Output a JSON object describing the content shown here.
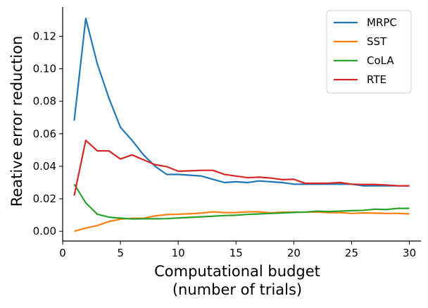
{
  "chart_data": {
    "type": "line",
    "title": "",
    "xlabel_line1": "Computational budget",
    "xlabel_line2": "(number of trials)",
    "ylabel": "Reative error reduction",
    "xlim": [
      0,
      31
    ],
    "ylim": [
      -0.006,
      0.138
    ],
    "xticks": [
      0,
      5,
      10,
      15,
      20,
      25,
      30
    ],
    "yticks": [
      0.0,
      0.02,
      0.04,
      0.06,
      0.08,
      0.1,
      0.12
    ],
    "ytick_labels": [
      "0.00",
      "0.02",
      "0.04",
      "0.06",
      "0.08",
      "0.10",
      "0.12"
    ],
    "legend_position": "top-right",
    "grid": false,
    "x": [
      1,
      2,
      3,
      4,
      5,
      6,
      7,
      8,
      9,
      10,
      11,
      12,
      13,
      14,
      15,
      16,
      17,
      18,
      19,
      20,
      21,
      22,
      23,
      24,
      25,
      26,
      27,
      28,
      29,
      30
    ],
    "series": [
      {
        "name": "MRPC",
        "color": "#1f77b4",
        "values": [
          0.068,
          0.131,
          0.103,
          0.082,
          0.064,
          0.056,
          0.047,
          0.04,
          0.035,
          0.035,
          0.0345,
          0.034,
          0.032,
          0.03,
          0.0305,
          0.03,
          0.031,
          0.0305,
          0.03,
          0.029,
          0.029,
          0.029,
          0.029,
          0.029,
          0.029,
          0.028,
          0.028,
          0.028,
          0.028,
          0.028
        ]
      },
      {
        "name": "SST",
        "color": "#ff7f0e",
        "values": [
          0.0,
          0.002,
          0.0035,
          0.006,
          0.0075,
          0.008,
          0.008,
          0.0095,
          0.0103,
          0.0105,
          0.0108,
          0.0112,
          0.012,
          0.0115,
          0.0115,
          0.012,
          0.012,
          0.0113,
          0.0118,
          0.0118,
          0.0118,
          0.0118,
          0.0115,
          0.0115,
          0.011,
          0.0113,
          0.0112,
          0.011,
          0.011,
          0.0107
        ]
      },
      {
        "name": "CoLA",
        "color": "#2ca02c",
        "values": [
          0.029,
          0.0175,
          0.0105,
          0.0087,
          0.0081,
          0.0076,
          0.0077,
          0.0077,
          0.0078,
          0.0082,
          0.0086,
          0.0089,
          0.0093,
          0.0097,
          0.0099,
          0.0104,
          0.0107,
          0.011,
          0.0113,
          0.0116,
          0.0118,
          0.0124,
          0.0121,
          0.0124,
          0.0127,
          0.0129,
          0.0136,
          0.0134,
          0.0141,
          0.0141
        ]
      },
      {
        "name": "RTE",
        "color": "#d62728",
        "values": [
          0.022,
          0.056,
          0.0495,
          0.0495,
          0.0445,
          0.047,
          0.044,
          0.041,
          0.0398,
          0.037,
          0.0372,
          0.0375,
          0.0375,
          0.035,
          0.034,
          0.033,
          0.0333,
          0.0328,
          0.0318,
          0.032,
          0.0295,
          0.0295,
          0.0296,
          0.03,
          0.029,
          0.0288,
          0.0288,
          0.0285,
          0.028,
          0.028
        ]
      }
    ]
  }
}
